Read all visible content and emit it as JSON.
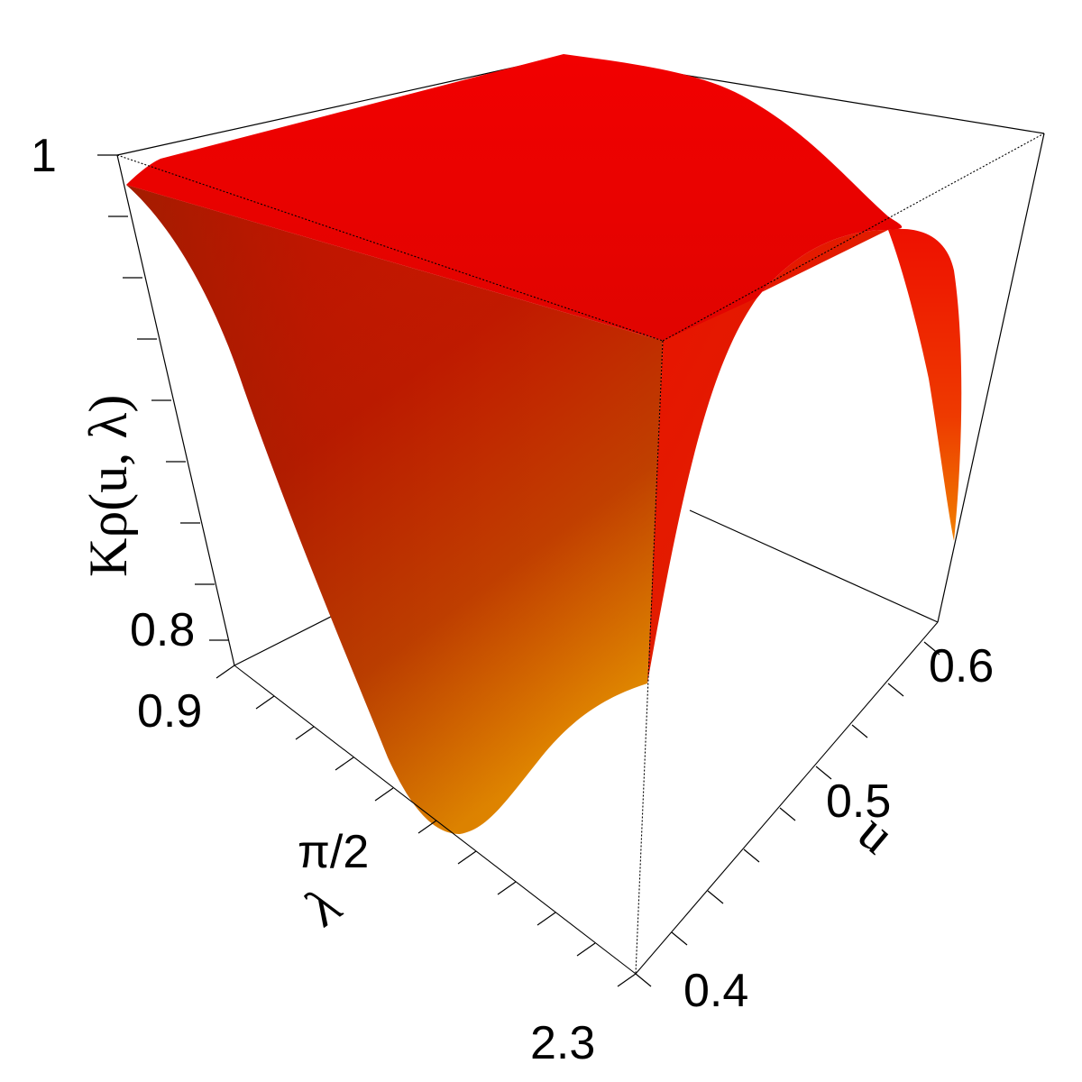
{
  "chart_data": {
    "type": "surface3d",
    "title": "",
    "colors": {
      "high": "#ee0000",
      "mid": "#d62a00",
      "low": "#e08000",
      "shadow": "#a84400"
    },
    "axes": {
      "x": {
        "label": "u",
        "ticks": [
          "0.4",
          "0.5",
          "0.6"
        ]
      },
      "y": {
        "label": "λ",
        "ticks": [
          "0.9",
          "π/2",
          "2.3"
        ]
      },
      "z": {
        "label": "Kρ(u, λ)",
        "ticks": [
          "0.8",
          "1"
        ],
        "range": [
          0.76,
          1.0
        ]
      }
    },
    "description_values": {
      "min_value_at": {
        "u": 0.4,
        "lambda": "π/2",
        "K": 0.76
      },
      "plateau_value": 1.0,
      "corner_value_u0.6_lambda2.3": 0.8
    }
  }
}
